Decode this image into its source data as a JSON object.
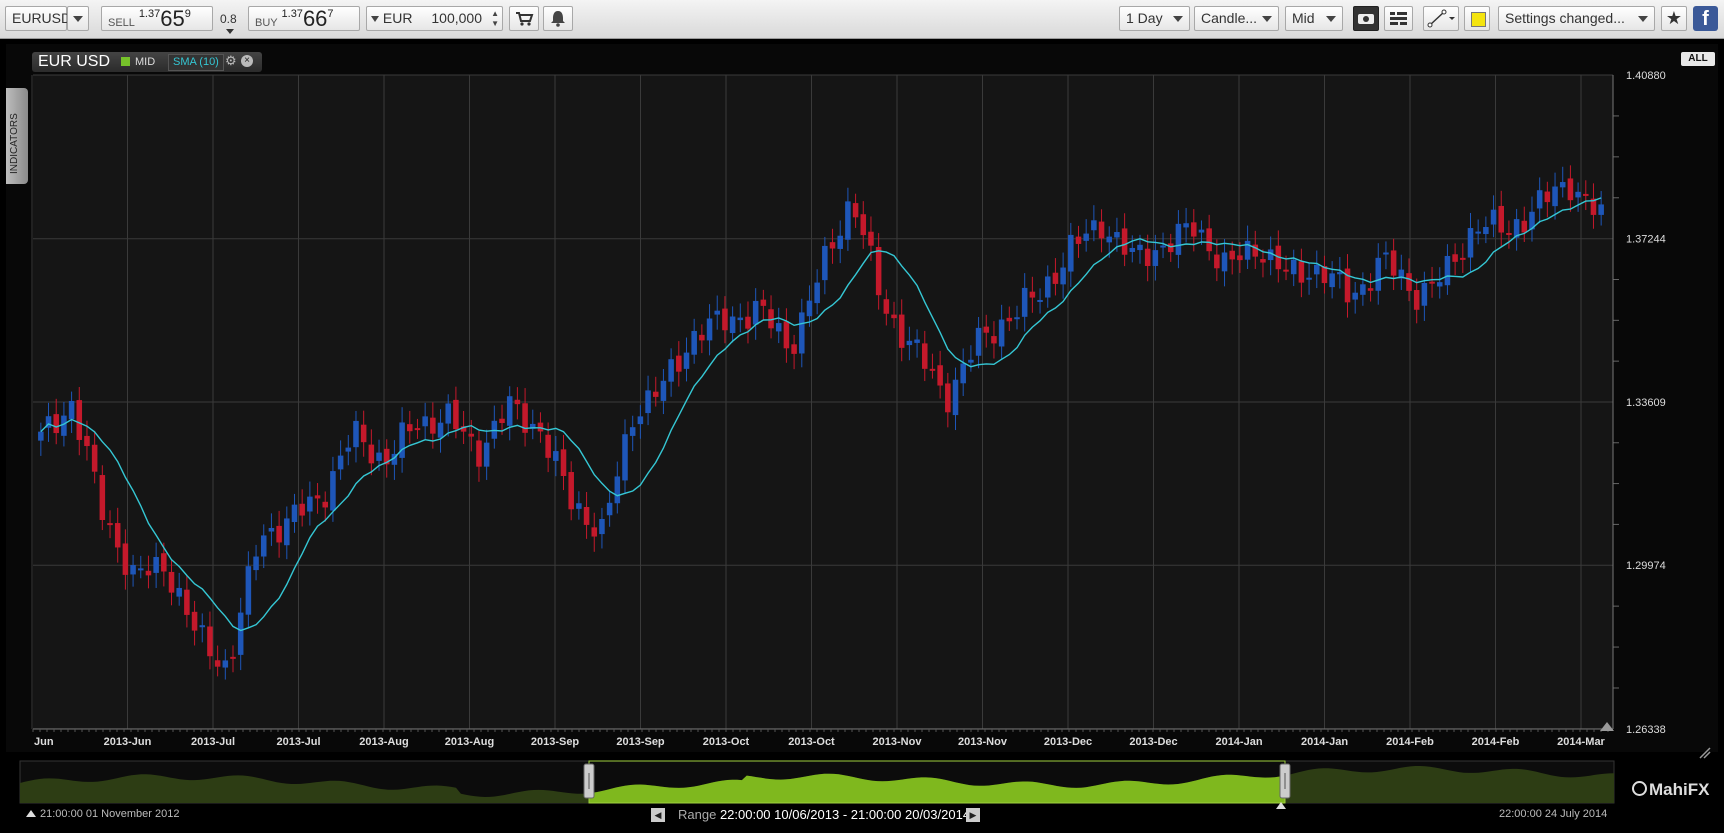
{
  "toolbar": {
    "symbol": "EURUSD",
    "sell_label": "SELL",
    "sell_prefix": "1.37",
    "sell_big": "65",
    "sell_sup": "9",
    "spread": "0.8",
    "buy_label": "BUY",
    "buy_prefix": "1.37",
    "buy_big": "66",
    "buy_sup": "7",
    "currency": "EUR",
    "amount": "100,000",
    "interval": "1 Day",
    "chart_style": "Candle...",
    "price_type": "Mid",
    "settings": "Settings changed..."
  },
  "legend": {
    "instrument": "EUR USD",
    "price_type": "MID",
    "indicator": "SMA (10)"
  },
  "side_tab": "INDICATORS",
  "all_button": "ALL",
  "logo": "MahiFX",
  "navigator": {
    "start_date": "21:00:00 01 November 2012",
    "end_date": "22:00:00 24 July 2014",
    "range_label": "Range",
    "range_value": "22:00:00 10/06/2013 - 21:00:00 20/03/2014"
  },
  "colors": {
    "up": "#1e56b8",
    "down": "#c4192b",
    "sma": "#35c7d4",
    "grid": "#3a3a3a",
    "navigator_fill": "#7fb81e",
    "mid_badge": "#76c22a"
  },
  "chart_data": {
    "type": "candlestick",
    "title": "EUR USD",
    "series_names": [
      "MID",
      "SMA (10)"
    ],
    "ylim": [
      1.26338,
      1.4088
    ],
    "yticks": [
      1.2634,
      1.2998,
      1.3361,
      1.3724,
      1.4088
    ],
    "ytick_labels": [
      "1.26338",
      "1.29974",
      "1.33609",
      "1.37244",
      "1.40880"
    ],
    "x_tick_labels": [
      "Jun",
      "2013-Jun",
      "2013-Jul",
      "2013-Jul",
      "2013-Aug",
      "2013-Aug",
      "2013-Sep",
      "2013-Sep",
      "2013-Oct",
      "2013-Oct",
      "2013-Nov",
      "2013-Nov",
      "2013-Dec",
      "2013-Dec",
      "2014-Jan",
      "2014-Jan",
      "2014-Feb",
      "2014-Feb",
      "2014-Mar"
    ],
    "close_anchors": [
      1.328,
      1.336,
      1.311,
      1.297,
      1.3,
      1.284,
      1.277,
      1.306,
      1.31,
      1.315,
      1.329,
      1.323,
      1.331,
      1.333,
      1.325,
      1.335,
      1.33,
      1.314,
      1.307,
      1.334,
      1.34,
      1.352,
      1.354,
      1.357,
      1.348,
      1.365,
      1.382,
      1.357,
      1.348,
      1.337,
      1.349,
      1.355,
      1.36,
      1.37,
      1.376,
      1.368,
      1.371,
      1.375,
      1.366,
      1.371,
      1.364,
      1.366,
      1.359,
      1.368,
      1.36,
      1.364,
      1.376,
      1.374,
      1.38,
      1.385,
      1.377
    ],
    "candle_count": 204,
    "sma_period": 10
  }
}
